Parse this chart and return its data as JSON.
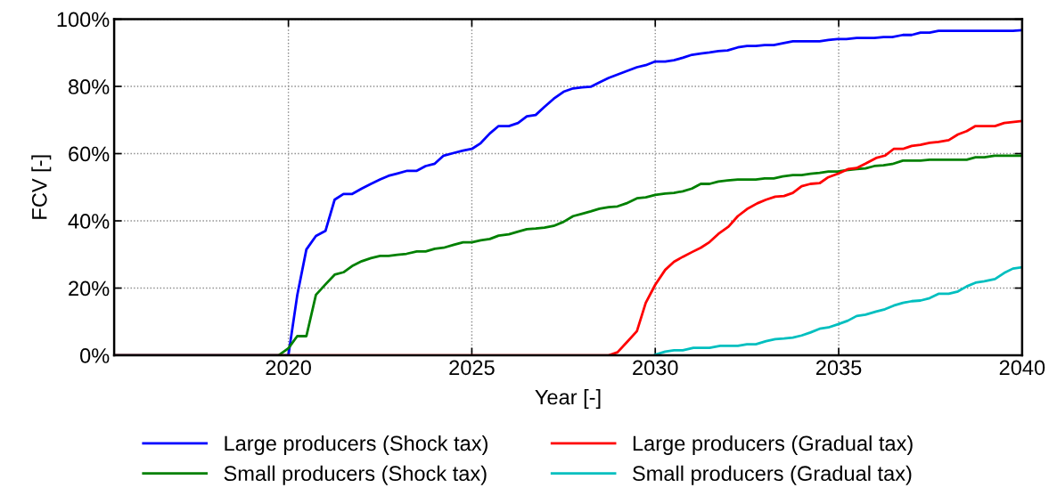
{
  "chart_data": {
    "type": "line",
    "xlabel": "Year [-]",
    "ylabel": "FCV [-]",
    "xlim": [
      2015.25,
      2040
    ],
    "xticks": [
      2020,
      2025,
      2030,
      2035,
      2040
    ],
    "ylim": [
      0,
      100
    ],
    "yticks": [
      {
        "value": 0,
        "label": "0%"
      },
      {
        "value": 20,
        "label": "20%"
      },
      {
        "value": 40,
        "label": "40%"
      },
      {
        "value": 60,
        "label": "60%"
      },
      {
        "value": 80,
        "label": "80%"
      },
      {
        "value": 100,
        "label": "100%"
      }
    ],
    "grid": true,
    "legend": "bottom",
    "line_style": "solid",
    "marker": "none",
    "series": [
      {
        "name": "Large producers (Shock tax)",
        "color": "#0000ff",
        "x": [
          2015.25,
          2020,
          2020.24,
          2020.49,
          2020.75,
          2021.01,
          2021.26,
          2021.5,
          2021.74,
          2022.0,
          2022.25,
          2022.5,
          2022.73,
          2022.97,
          2023.24,
          2023.5,
          2023.74,
          2023.99,
          2024.23,
          2024.51,
          2024.76,
          2025,
          2025.24,
          2025.49,
          2025.73,
          2026.01,
          2026.26,
          2026.5,
          2026.74,
          2026.98,
          2027.23,
          2027.5,
          2027.76,
          2028,
          2028.24,
          2028.48,
          2028.73,
          2028.97,
          2029.21,
          2029.5,
          2029.74,
          2030,
          2030.27,
          2030.51,
          2030.75,
          2031,
          2031.24,
          2031.48,
          2031.72,
          2031.97,
          2032.25,
          2032.5,
          2032.74,
          2032.98,
          2033.23,
          2033.47,
          2033.75,
          2034.48,
          2034.72,
          2034.97,
          2035.21,
          2035.49,
          2035.97,
          2036.22,
          2036.46,
          2036.75,
          2036.99,
          2037.23,
          2037.48,
          2037.72,
          2039.75,
          2040
        ],
        "values": [
          0,
          0,
          17.8,
          31.5,
          35.5,
          37.0,
          46.3,
          48.0,
          48.0,
          49.6,
          51,
          52.3,
          53.4,
          54.1,
          54.9,
          54.9,
          56.3,
          57.0,
          59.4,
          60.2,
          60.9,
          61.4,
          63.1,
          66.0,
          68.2,
          68.2,
          69.1,
          71.1,
          71.5,
          73.9,
          76.3,
          78.4,
          79.4,
          79.7,
          79.9,
          81.2,
          82.5,
          83.5,
          84.5,
          85.7,
          86.3,
          87.4,
          87.4,
          87.8,
          88.5,
          89.4,
          89.8,
          90.1,
          90.5,
          90.7,
          91.6,
          92.0,
          92.0,
          92.3,
          92.3,
          92.8,
          93.4,
          93.4,
          93.8,
          94.1,
          94.1,
          94.4,
          94.4,
          94.7,
          94.7,
          95.3,
          95.3,
          96.0,
          96.0,
          96.5,
          96.5,
          96.7
        ]
      },
      {
        "name": "Small producers (Shock tax)",
        "color": "#008000",
        "x": [
          2015.25,
          2019.73,
          2020,
          2020.24,
          2020.49,
          2020.75,
          2021.01,
          2021.26,
          2021.5,
          2021.76,
          2022,
          2022.25,
          2022.5,
          2022.73,
          2022.97,
          2023.22,
          2023.5,
          2023.74,
          2023.99,
          2024.23,
          2024.51,
          2024.76,
          2025,
          2025.24,
          2025.49,
          2025.73,
          2026.01,
          2026.26,
          2026.5,
          2026.74,
          2026.98,
          2027.23,
          2027.5,
          2027.76,
          2028,
          2028.24,
          2028.48,
          2028.73,
          2028.97,
          2029.21,
          2029.5,
          2029.74,
          2030,
          2030.27,
          2030.51,
          2030.75,
          2031,
          2031.24,
          2031.48,
          2031.72,
          2031.97,
          2032.25,
          2032.74,
          2032.98,
          2033.23,
          2033.47,
          2033.75,
          2033.99,
          2034.23,
          2034.48,
          2034.72,
          2034.97,
          2035.21,
          2035.49,
          2035.73,
          2035.97,
          2036.22,
          2036.46,
          2036.75,
          2037.23,
          2037.48,
          2038.49,
          2038.73,
          2038.97,
          2039.25,
          2040
        ],
        "values": [
          0,
          0,
          2.1,
          5.7,
          5.7,
          18.0,
          21.1,
          24.0,
          24.7,
          26.7,
          28.0,
          28.9,
          29.6,
          29.6,
          29.9,
          30.2,
          30.9,
          30.9,
          31.7,
          32.0,
          32.9,
          33.6,
          33.6,
          34.2,
          34.6,
          35.6,
          36.0,
          36.8,
          37.5,
          37.7,
          38.0,
          38.5,
          39.7,
          41.4,
          42.1,
          42.8,
          43.6,
          44.1,
          44.3,
          45.2,
          46.7,
          47.0,
          47.7,
          48.1,
          48.3,
          48.8,
          49.6,
          51.0,
          51.0,
          51.7,
          52.0,
          52.3,
          52.3,
          52.6,
          52.6,
          53.2,
          53.6,
          53.6,
          54.0,
          54.3,
          54.7,
          54.7,
          55.1,
          55.4,
          55.6,
          56.3,
          56.5,
          56.9,
          57.9,
          57.9,
          58.2,
          58.2,
          58.9,
          58.9,
          59.4,
          59.4
        ]
      },
      {
        "name": "Large producers (Gradual tax)",
        "color": "#ff0000",
        "x": [
          2015.25,
          2028.73,
          2028.97,
          2029.21,
          2029.5,
          2029.74,
          2030,
          2030.27,
          2030.51,
          2030.75,
          2031,
          2031.24,
          2031.48,
          2031.72,
          2032.0,
          2032.25,
          2032.5,
          2032.78,
          2033.02,
          2033.27,
          2033.51,
          2033.75,
          2033.99,
          2034.23,
          2034.48,
          2034.72,
          2035.0,
          2035.25,
          2035.49,
          2035.73,
          2036.02,
          2036.26,
          2036.5,
          2036.75,
          2036.99,
          2037.23,
          2037.48,
          2037.72,
          2038.0,
          2038.25,
          2038.49,
          2038.73,
          2039.26,
          2039.51,
          2040
        ],
        "values": [
          0,
          0,
          0.9,
          3.7,
          7.2,
          15.6,
          21.0,
          25.4,
          27.8,
          29.3,
          30.7,
          32.0,
          33.7,
          36.1,
          38.3,
          41.4,
          43.5,
          45.2,
          46.3,
          47.2,
          47.4,
          48.3,
          50.3,
          51.0,
          51.2,
          53.0,
          54.1,
          55.4,
          55.7,
          57.0,
          58.7,
          59.4,
          61.4,
          61.4,
          62.3,
          62.6,
          63.2,
          63.5,
          64.0,
          65.7,
          66.7,
          68.2,
          68.2,
          69.1,
          69.7
        ]
      },
      {
        "name": "Small producers (Gradual tax)",
        "color": "#00bfbf",
        "x": [
          2030,
          2030.27,
          2030.51,
          2030.75,
          2031.04,
          2031.48,
          2031.77,
          2032.25,
          2032.5,
          2032.74,
          2033.02,
          2033.27,
          2033.51,
          2033.75,
          2033.99,
          2034.23,
          2034.48,
          2034.72,
          2035.0,
          2035.25,
          2035.49,
          2035.73,
          2036.02,
          2036.26,
          2036.5,
          2036.75,
          2036.99,
          2037.23,
          2037.48,
          2037.72,
          2038.0,
          2038.25,
          2038.49,
          2038.73,
          2038.97,
          2039.26,
          2039.51,
          2039.75,
          2040
        ],
        "values": [
          0.2,
          1.1,
          1.5,
          1.5,
          2.2,
          2.2,
          2.8,
          2.8,
          3.3,
          3.3,
          4.2,
          4.8,
          5.0,
          5.3,
          5.9,
          6.8,
          7.9,
          8.3,
          9.3,
          10.3,
          11.7,
          12.1,
          13.0,
          13.7,
          14.8,
          15.6,
          16.1,
          16.3,
          17.0,
          18.3,
          18.3,
          19.0,
          20.5,
          21.6,
          22.0,
          22.7,
          24.5,
          25.8,
          26.2
        ]
      }
    ]
  }
}
